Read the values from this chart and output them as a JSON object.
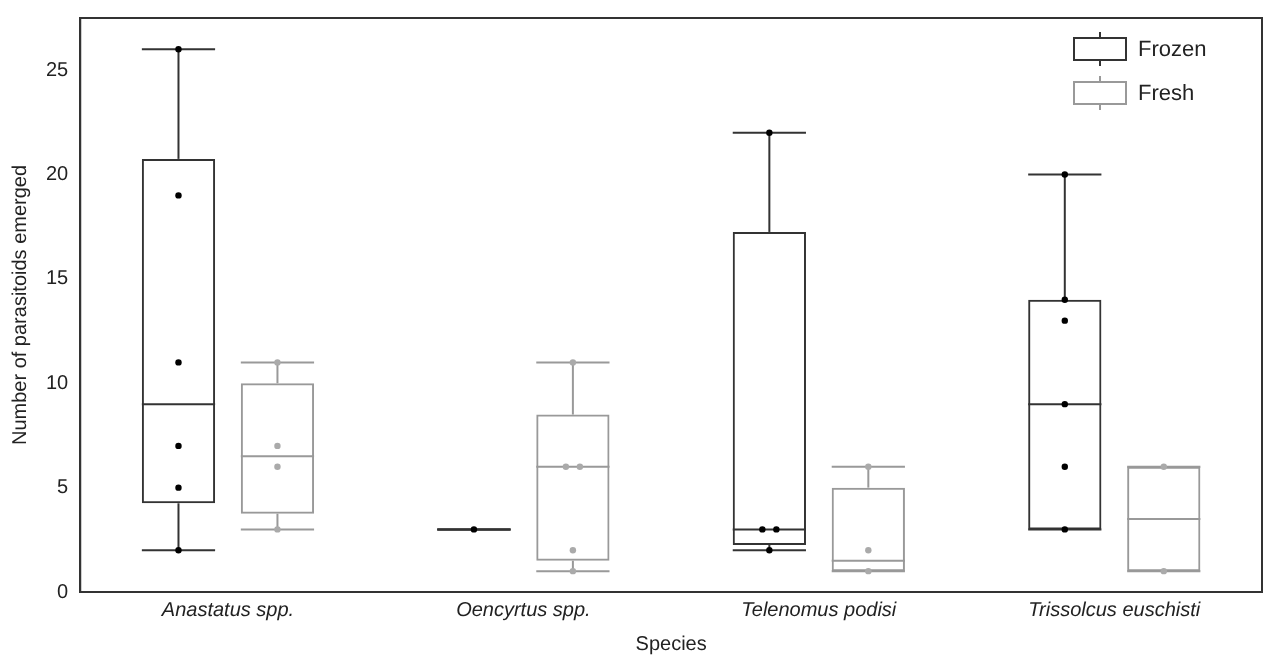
{
  "chart_data": {
    "type": "box",
    "xlabel": "Species",
    "ylabel": "Number of parasitoids emerged",
    "categories": [
      "Anastatus spp.",
      "Oencyrtus spp.",
      "Telenomus podisi",
      "Trissolcus euschisti"
    ],
    "ylim": [
      0,
      27.5
    ],
    "yticks": [
      0,
      5,
      10,
      15,
      20,
      25
    ],
    "grid": false,
    "legend": "top right",
    "marker": "circle",
    "series": [
      {
        "name": "Frozen",
        "type": "box",
        "color": "#333333",
        "boxes": [
          {
            "low": 2,
            "q1": 4.25,
            "median": 9,
            "q3": 20.75,
            "high": 26
          },
          {
            "low": 3,
            "q1": 3,
            "median": 3,
            "q3": 3,
            "high": 3
          },
          {
            "low": 2,
            "q1": 2.25,
            "median": 3,
            "q3": 17.25,
            "high": 22
          },
          {
            "low": 3,
            "q1": 3,
            "median": 9,
            "q3": 14,
            "high": 20
          }
        ]
      },
      {
        "name": "Fresh",
        "type": "box",
        "color": "#999999",
        "boxes": [
          {
            "low": 3,
            "q1": 3.75,
            "median": 6.5,
            "q3": 10,
            "high": 11
          },
          {
            "low": 1,
            "q1": 1.5,
            "median": 6,
            "q3": 8.5,
            "high": 11
          },
          {
            "low": 1,
            "q1": 1,
            "median": 1.5,
            "q3": 5,
            "high": 6
          },
          {
            "low": 1,
            "q1": 1,
            "median": 3.5,
            "q3": 6,
            "high": 6
          }
        ]
      },
      {
        "type": "scatter",
        "color": "#000000",
        "x": [
          "Anastatus spp.",
          "Anastatus spp.",
          "Anastatus spp.",
          "Anastatus spp.",
          "Anastatus spp.",
          "Anastatus spp.",
          "Oencyrtus spp.",
          "Telenomus podisi",
          "Telenomus podisi",
          "Telenomus podisi",
          "Telenomus podisi",
          "Trissolcus euschisti",
          "Trissolcus euschisti",
          "Trissolcus euschisti",
          "Trissolcus euschisti",
          "Trissolcus euschisti",
          "Trissolcus euschisti"
        ],
        "values": [
          26,
          19,
          11,
          7,
          5,
          2,
          3,
          22,
          3,
          3,
          2,
          20,
          14,
          13,
          9,
          6,
          3
        ]
      },
      {
        "type": "scatter",
        "color": "#aaaaaa",
        "x": [
          "Anastatus spp.",
          "Anastatus spp.",
          "Anastatus spp.",
          "Anastatus spp.",
          "Oencyrtus spp.",
          "Oencyrtus spp.",
          "Oencyrtus spp.",
          "Oencyrtus spp.",
          "Oencyrtus spp.",
          "Telenomus podisi",
          "Telenomus podisi",
          "Telenomus podisi",
          "Trissolcus euschisti",
          "Trissolcus euschisti"
        ],
        "values": [
          11,
          7,
          6,
          3,
          11,
          6,
          6,
          2,
          1,
          6,
          2,
          1,
          6,
          1
        ]
      }
    ]
  }
}
